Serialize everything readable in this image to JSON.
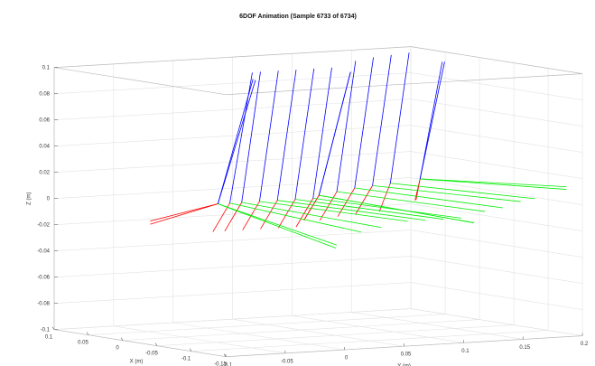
{
  "chart_data": {
    "type": "quiver3",
    "title": "6DOF Animation (Sample 6733 of 6734)",
    "x_label": "X (m)",
    "y_label": "Y (m)",
    "z_label": "Z (m)",
    "xlim": [
      -0.15,
      0.1
    ],
    "xticks": [
      -0.15,
      -0.1,
      -0.05,
      0,
      0.05,
      0.1
    ],
    "ylim": [
      -0.1,
      0.2
    ],
    "yticks": [
      -0.1,
      -0.05,
      0,
      0.05,
      0.1,
      0.15,
      0.2
    ],
    "zlim": [
      -0.1,
      0.1
    ],
    "zticks": [
      -0.1,
      -0.08,
      -0.06,
      -0.04,
      -0.02,
      0,
      0.02,
      0.04,
      0.06,
      0.08,
      0.1
    ],
    "grid": true,
    "x": [
      0,
      0,
      0,
      0,
      0,
      0,
      0,
      0,
      0,
      0,
      0,
      0,
      0,
      0,
      0,
      0
    ],
    "y": [
      -0.02,
      -0.02,
      -0.01,
      0,
      0.015,
      0.03,
      0.045,
      0.06,
      0.065,
      0.065,
      0.08,
      0.095,
      0.11,
      0.125,
      0.15,
      0.15
    ],
    "z": [
      0,
      0,
      0,
      0,
      0,
      0,
      0,
      0,
      0.002,
      0.002,
      0.004,
      0.006,
      0.007,
      0.008,
      0.01,
      0.01
    ],
    "series": [
      {
        "color": "#ff0000",
        "u": [
          -0.045,
          -0.04,
          -0.01,
          -0.01,
          -0.01,
          -0.01,
          -0.01,
          -0.01,
          -0.03,
          -0.03,
          -0.01,
          -0.01,
          -0.01,
          -0.01,
          -0.01,
          -0.008
        ],
        "v": [
          -0.083,
          -0.08,
          -0.02,
          -0.02,
          -0.02,
          -0.02,
          -0.02,
          -0.02,
          -0.03,
          -0.03,
          -0.02,
          -0.02,
          -0.02,
          -0.015,
          -0.01,
          -0.008
        ],
        "w": [
          -0.005,
          -0.008,
          -0.02,
          -0.02,
          -0.02,
          -0.02,
          -0.02,
          -0.02,
          -0.015,
          -0.015,
          -0.02,
          -0.02,
          -0.02,
          -0.02,
          -0.015,
          -0.015
        ]
      },
      {
        "color": "#00ee00",
        "u": [
          -0.08,
          -0.078,
          -0.07,
          -0.065,
          -0.06,
          -0.06,
          -0.06,
          -0.06,
          -0.07,
          -0.07,
          -0.06,
          -0.06,
          -0.06,
          -0.055,
          -0.04,
          -0.04
        ],
        "v": [
          0.053,
          0.055,
          0.07,
          0.08,
          0.09,
          0.09,
          0.09,
          0.09,
          0.09,
          0.09,
          0.09,
          0.09,
          0.09,
          0.09,
          0.1,
          0.1
        ],
        "w": [
          -0.03,
          -0.028,
          -0.02,
          -0.018,
          -0.015,
          -0.015,
          -0.015,
          -0.015,
          -0.02,
          -0.02,
          -0.015,
          -0.015,
          -0.012,
          -0.012,
          -0.01,
          -0.008
        ]
      },
      {
        "color": "#0000ff",
        "u": [
          -0.02,
          -0.02,
          -0.012,
          -0.01,
          -0.01,
          -0.01,
          -0.01,
          -0.01,
          -0.02,
          -0.02,
          -0.01,
          -0.01,
          -0.01,
          -0.01,
          -0.015,
          -0.015
        ],
        "v": [
          0.02,
          0.018,
          0.012,
          0.01,
          0.01,
          0.01,
          0.01,
          0.01,
          0.015,
          0.015,
          0.01,
          0.01,
          0.01,
          0.01,
          0.012,
          0.01
        ],
        "w": [
          0.095,
          0.096,
          0.1,
          0.1,
          0.1,
          0.1,
          0.1,
          0.1,
          0.095,
          0.095,
          0.1,
          0.1,
          0.1,
          0.1,
          0.09,
          0.09
        ]
      }
    ]
  }
}
